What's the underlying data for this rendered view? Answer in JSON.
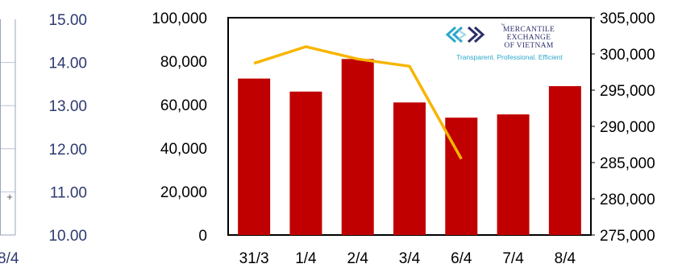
{
  "colors": {
    "bar": "#c00000",
    "line": "#f7b500",
    "left_panel_ticks": "#2e3a70",
    "axis_text": "#000000",
    "logo_blue": "#2ba7c9",
    "logo_navy": "#2b2f6b"
  },
  "left_panel": {
    "y_ticks": [
      "15.00",
      "14.00",
      "13.00",
      "12.00",
      "11.00",
      "10.00"
    ],
    "x_tick_partial": "8/4",
    "marker_glyph": "+"
  },
  "logo": {
    "icon": "mxv-chevron-logo-icon",
    "line1": "MERCANTILE",
    "line2": "EXCHANGE",
    "line3": "OF VIETNAM",
    "tagline": "Transparent. Professional. Efficient",
    "tm": "™"
  },
  "chart_data": {
    "type": "bar",
    "categories": [
      "31/3",
      "1/4",
      "2/4",
      "3/4",
      "6/4",
      "7/4",
      "8/4"
    ],
    "series": [
      {
        "type": "bar",
        "axis": "left",
        "values": [
          72000,
          66000,
          81000,
          61000,
          54000,
          55500,
          68500
        ]
      },
      {
        "type": "line",
        "axis": "right",
        "values": [
          298700,
          301000,
          299300,
          298300,
          285500,
          null,
          null
        ]
      }
    ],
    "ylim_left": [
      0,
      100000
    ],
    "ylim_right": [
      275000,
      305000
    ],
    "y_ticks_left": [
      "0",
      "20,000",
      "40,000",
      "60,000",
      "80,000",
      "100,000"
    ],
    "y_ticks_right": [
      "275,000",
      "280,000",
      "285,000",
      "290,000",
      "295,000",
      "300,000",
      "305,000"
    ],
    "grid": false,
    "legend": "none"
  }
}
